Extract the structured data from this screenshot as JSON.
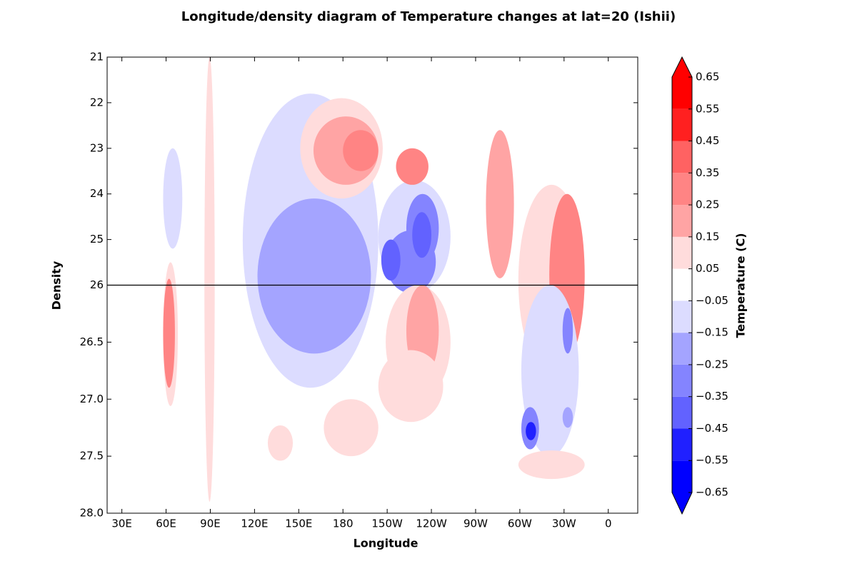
{
  "chart_data": {
    "type": "contour",
    "title": "Longitude/density diagram of Temperature changes at lat=20 (Ishii)",
    "x_label": "Longitude",
    "y_label": "Density",
    "xlim": [
      20,
      380
    ],
    "xticks": [
      {
        "value": 30,
        "label": "30E"
      },
      {
        "value": 60,
        "label": "60E"
      },
      {
        "value": 90,
        "label": "90E"
      },
      {
        "value": 120,
        "label": "120E"
      },
      {
        "value": 150,
        "label": "150E"
      },
      180,
      {
        "value": 210,
        "label": "150W"
      },
      {
        "value": 240,
        "label": "120W"
      },
      {
        "value": 270,
        "label": "90W"
      },
      {
        "value": 300,
        "label": "60W"
      },
      {
        "value": 330,
        "label": "30W"
      },
      {
        "value": 360,
        "label": "0"
      }
    ],
    "ylim": [
      21,
      28
    ],
    "y_inverted": true,
    "y_break": 26,
    "yticks": [
      21,
      22,
      23,
      24,
      25,
      26,
      26.5,
      {
        "value": 27,
        "label": "27.0"
      },
      27.5,
      {
        "value": 28,
        "label": "28.0"
      }
    ],
    "hline": 26,
    "regions": [
      {
        "lon": [
          112,
          204
        ],
        "density": [
          21.8,
          26.9
        ],
        "value": -0.1
      },
      {
        "lon": [
          204,
          253
        ],
        "density": [
          23.7,
          26.07
        ],
        "value": -0.1
      },
      {
        "lon": [
          122,
          199
        ],
        "density": [
          24.1,
          26.6
        ],
        "value": -0.2
      },
      {
        "lon": [
          209,
          243
        ],
        "density": [
          24.8,
          26.07
        ],
        "value": -0.3
      },
      {
        "lon": [
          223,
          245
        ],
        "density": [
          24.0,
          25.5
        ],
        "value": -0.3
      },
      {
        "lon": [
          206,
          219
        ],
        "density": [
          25.0,
          25.9
        ],
        "value": -0.45
      },
      {
        "lon": [
          227,
          240
        ],
        "density": [
          24.4,
          25.4
        ],
        "value": -0.45
      },
      {
        "lon": [
          151,
          207
        ],
        "density": [
          21.9,
          24.1
        ],
        "value": 0.1
      },
      {
        "lon": [
          160,
          204
        ],
        "density": [
          22.3,
          23.8
        ],
        "value": 0.2
      },
      {
        "lon": [
          180,
          204
        ],
        "density": [
          22.6,
          23.5
        ],
        "value": 0.3
      },
      {
        "lon": [
          216,
          238
        ],
        "density": [
          23.0,
          23.8
        ],
        "value": 0.3
      },
      {
        "lon": [
          209,
          253
        ],
        "density": [
          26.0,
          27.0
        ],
        "value": 0.1
      },
      {
        "lon": [
          223,
          245
        ],
        "density": [
          26.0,
          26.8
        ],
        "value": 0.2
      },
      {
        "lon": [
          204,
          248
        ],
        "density": [
          26.57,
          27.2
        ],
        "value": 0.1
      },
      {
        "lon": [
          167,
          204
        ],
        "density": [
          27.0,
          27.5
        ],
        "value": 0.1
      },
      {
        "lon": [
          129,
          146
        ],
        "density": [
          27.23,
          27.54
        ],
        "value": 0.1
      },
      {
        "lon": [
          58,
          68
        ],
        "density": [
          25.5,
          27.06
        ],
        "value": 0.1
      },
      {
        "lon": [
          58,
          66
        ],
        "density": [
          25.86,
          26.9
        ],
        "value": 0.3
      },
      {
        "lon": [
          58,
          71
        ],
        "density": [
          23.0,
          25.2
        ],
        "value": -0.1
      },
      {
        "lon": [
          86,
          93
        ],
        "density": [
          21.0,
          27.9
        ],
        "value": 0.1
      },
      {
        "lon": [
          277,
          296
        ],
        "density": [
          22.6,
          25.85
        ],
        "value": 0.2
      },
      {
        "lon": [
          299,
          344
        ],
        "density": [
          23.8,
          26.8
        ],
        "value": 0.1
      },
      {
        "lon": [
          320,
          344
        ],
        "density": [
          24.0,
          26.63
        ],
        "value": 0.3
      },
      {
        "lon": [
          301,
          340
        ],
        "density": [
          26.0,
          27.5
        ],
        "value": -0.1
      },
      {
        "lon": [
          329,
          336
        ],
        "density": [
          26.2,
          26.6
        ],
        "value": -0.3
      },
      {
        "lon": [
          329,
          336
        ],
        "density": [
          27.07,
          27.25
        ],
        "value": -0.2
      },
      {
        "lon": [
          301,
          313
        ],
        "density": [
          27.07,
          27.44
        ],
        "value": -0.3
      },
      {
        "lon": [
          304,
          311
        ],
        "density": [
          27.2,
          27.36
        ],
        "value": -0.5
      },
      {
        "lon": [
          299,
          344
        ],
        "density": [
          27.45,
          27.7
        ],
        "value": 0.1
      }
    ],
    "colorbar": {
      "label": "Temperature (C)",
      "levels": [
        {
          "value": -0.65,
          "label": "−0.65"
        },
        {
          "value": -0.55,
          "label": "−0.55"
        },
        {
          "value": -0.45,
          "label": "−0.45"
        },
        {
          "value": -0.35,
          "label": "−0.35"
        },
        {
          "value": -0.25,
          "label": "−0.25"
        },
        {
          "value": -0.15,
          "label": "−0.15"
        },
        {
          "value": -0.05,
          "label": "−0.05"
        },
        0.05,
        0.15,
        0.25,
        0.35,
        0.45,
        0.55,
        0.65
      ],
      "colors": [
        "#0000ff",
        "#2020ff",
        "#6262ff",
        "#8484ff",
        "#a4a4ff",
        "#dcdcff",
        "#ffffff",
        "#ffdcdc",
        "#ffa4a4",
        "#ff8484",
        "#ff6262",
        "#ff2020",
        "#ff0000"
      ],
      "under": "#0000ff",
      "over": "#ff0000"
    }
  }
}
